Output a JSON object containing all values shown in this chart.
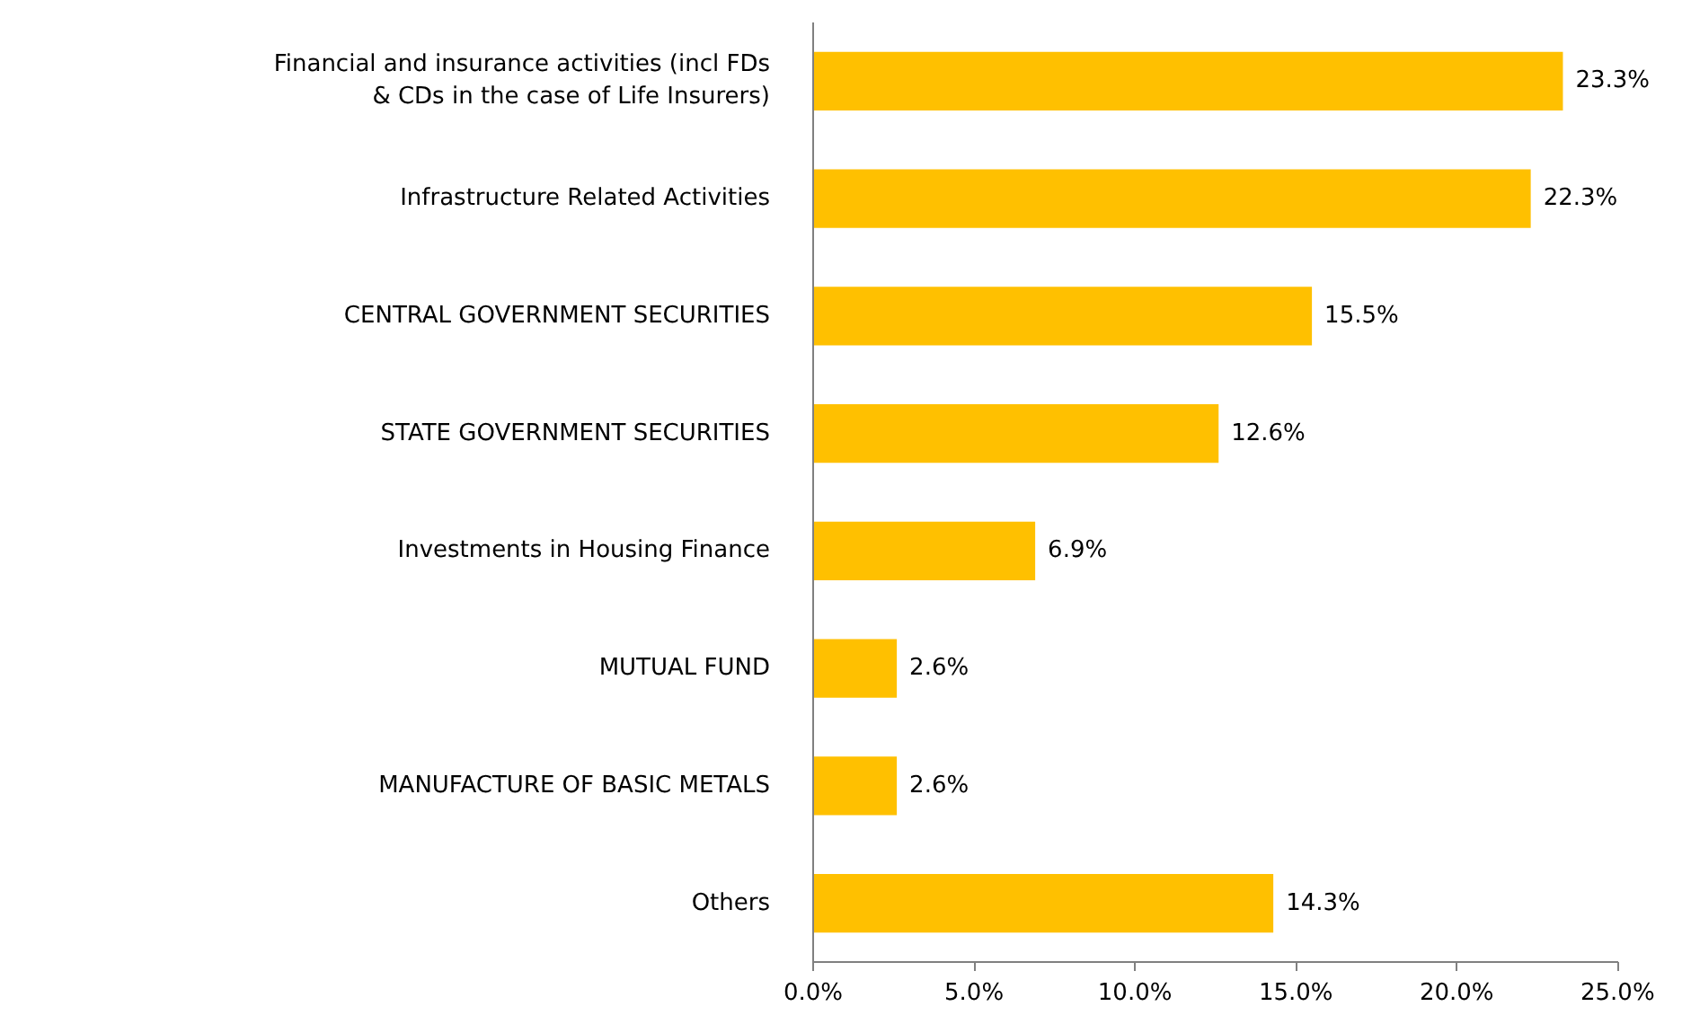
{
  "chart_data": {
    "type": "bar",
    "orientation": "horizontal",
    "categories": [
      "Financial and insurance activities (incl FDs & CDs in the case of Life Insurers)",
      "Infrastructure Related Activities",
      "CENTRAL GOVERNMENT SECURITIES",
      "STATE GOVERNMENT SECURITIES",
      "Investments in Housing Finance",
      "MUTUAL FUND",
      "MANUFACTURE OF BASIC METALS",
      "Others"
    ],
    "values": [
      23.3,
      22.3,
      15.5,
      12.6,
      6.9,
      2.6,
      2.6,
      14.3
    ],
    "value_labels": [
      "23.3%",
      "22.3%",
      "15.5%",
      "12.6%",
      "6.9%",
      "2.6%",
      "2.6%",
      "14.3%"
    ],
    "color": "#ffc000",
    "xlim": [
      0,
      25
    ],
    "xticks": [
      {
        "value": 0,
        "label": "0.0%"
      },
      {
        "value": 5,
        "label": "5.0%"
      },
      {
        "value": 10,
        "label": "10.0%"
      },
      {
        "value": 15,
        "label": "15.0%"
      },
      {
        "value": 20,
        "label": "20.0%"
      },
      {
        "value": 25,
        "label": "25.0%"
      }
    ],
    "grid": false
  }
}
